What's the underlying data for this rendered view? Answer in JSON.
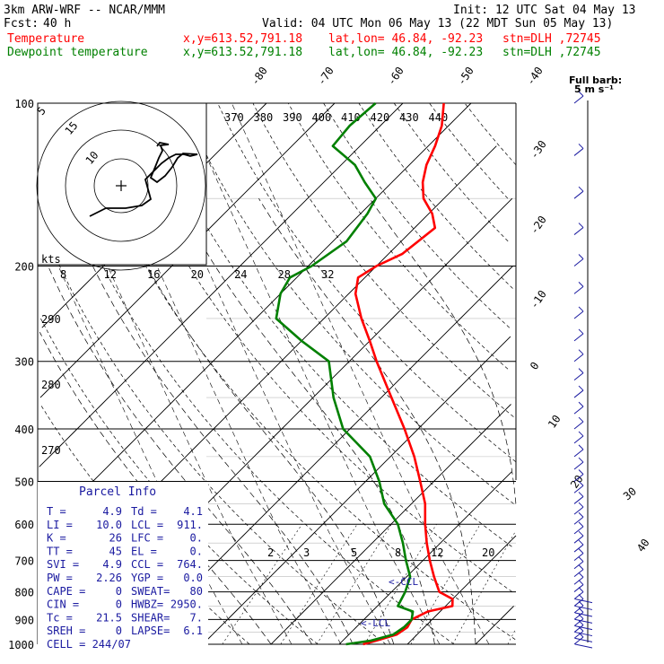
{
  "header": {
    "model": "3km ARW-WRF -- NCAR/MMM",
    "init_label": "Init: 12 UTC Sat 04 May 13",
    "fcst_label": "Fcst:",
    "fcst_value": "40 h",
    "valid_label": "Valid: 04 UTC Mon 06 May 13 (22 MDT Sun 05 May 13)"
  },
  "legend": [
    {
      "name": "Temperature",
      "xy": "x,y=613.52,791.18",
      "latlon": "lat,lon= 46.84, -92.23",
      "stn": "stn=DLH ,72745",
      "color": "#ff0000"
    },
    {
      "name": "Dewpoint temperature",
      "xy": "x,y=613.52,791.18",
      "latlon": "lat,lon= 46.84, -92.23",
      "stn": "stn=DLH ,72745",
      "color": "#008000"
    }
  ],
  "barb_legend": {
    "line1": "Full barb:",
    "line2": "5 m s⁻¹"
  },
  "hodograph": {
    "ring_labels": [
      "15",
      "10",
      "5"
    ],
    "units": "kts"
  },
  "parcel_info": {
    "title": "Parcel Info",
    "rows": [
      [
        "T  =",
        "4.9",
        "Td =",
        "4.1"
      ],
      [
        "LI =",
        "10.0",
        "LCL =",
        "911."
      ],
      [
        "K  =",
        "26",
        "LFC =",
        "0."
      ],
      [
        "TT =",
        "45",
        "EL  =",
        "0."
      ],
      [
        "SVI =",
        "4.9",
        "CCL =",
        "764."
      ],
      [
        "PW =",
        "2.26",
        "YGP =",
        "0.0"
      ],
      [
        "CAPE =",
        "0",
        "SWEAT=",
        "80"
      ],
      [
        "CIN =",
        "0",
        "HWBZ=",
        "2950."
      ],
      [
        "Tc =",
        "21.5",
        "SHEAR=",
        "7."
      ],
      [
        "SREH =",
        "0",
        "LAPSE=",
        "6.1"
      ]
    ],
    "cell": "CELL = 244/07"
  },
  "chart_data": {
    "type": "line",
    "plot": "skew-T log-P diagram",
    "y_axis": {
      "label": "pressure (hPa)",
      "scale": "log",
      "range": [
        1000,
        100
      ],
      "ticks": [
        100,
        200,
        300,
        400,
        500,
        600,
        700,
        800,
        900,
        1000
      ]
    },
    "isotherm_labels": [
      "-80",
      "-70",
      "-60",
      "-50",
      "-40",
      "-30",
      "-20",
      "-10",
      "0",
      "10",
      "20",
      "30",
      "40"
    ],
    "isotherm_values": [
      -80,
      -70,
      -60,
      -50,
      -40,
      -30,
      -20,
      -10,
      0,
      10,
      20,
      30,
      40
    ],
    "theta_labels_top": [
      "370",
      "380",
      "390",
      "400",
      "410",
      "420",
      "430",
      "440"
    ],
    "theta_labels_left": [
      "290",
      "280",
      "270"
    ],
    "thetae_labels": [
      "8",
      "12",
      "16",
      "20",
      "24",
      "28",
      "32"
    ],
    "mixing_ratio_labels": [
      "2",
      "3",
      "5",
      "8",
      "12",
      "20"
    ],
    "annotations": [
      "<-CCL",
      "<-LCL"
    ],
    "series": [
      {
        "name": "Temperature",
        "color": "#ff0000",
        "points": [
          [
            1000,
            3.5
          ],
          [
            985,
            4.9
          ],
          [
            960,
            7.0
          ],
          [
            930,
            7.5
          ],
          [
            900,
            7.0
          ],
          [
            870,
            8.2
          ],
          [
            850,
            11.0
          ],
          [
            825,
            10.0
          ],
          [
            800,
            7.0
          ],
          [
            750,
            4.0
          ],
          [
            700,
            1.0
          ],
          [
            650,
            -2.0
          ],
          [
            600,
            -5.0
          ],
          [
            550,
            -8.0
          ],
          [
            500,
            -12.0
          ],
          [
            450,
            -16.5
          ],
          [
            400,
            -22.0
          ],
          [
            350,
            -28.5
          ],
          [
            300,
            -36.0
          ],
          [
            275,
            -40.0
          ],
          [
            250,
            -44.5
          ],
          [
            225,
            -49.0
          ],
          [
            210,
            -51.0
          ],
          [
            200,
            -50.0
          ],
          [
            190,
            -48.0
          ],
          [
            180,
            -47.5
          ],
          [
            170,
            -47.0
          ],
          [
            160,
            -49.5
          ],
          [
            150,
            -53.0
          ],
          [
            140,
            -55.5
          ],
          [
            130,
            -57.5
          ],
          [
            120,
            -59.0
          ],
          [
            110,
            -61.0
          ],
          [
            100,
            -64.0
          ]
        ]
      },
      {
        "name": "Dewpoint temperature",
        "color": "#008000",
        "points": [
          [
            1000,
            1.0
          ],
          [
            985,
            4.1
          ],
          [
            960,
            6.5
          ],
          [
            930,
            7.0
          ],
          [
            900,
            7.0
          ],
          [
            870,
            6.0
          ],
          [
            850,
            3.0
          ],
          [
            800,
            2.0
          ],
          [
            750,
            0.5
          ],
          [
            700,
            -2.5
          ],
          [
            650,
            -5.5
          ],
          [
            600,
            -9.0
          ],
          [
            550,
            -14.0
          ],
          [
            500,
            -18.0
          ],
          [
            450,
            -23.0
          ],
          [
            400,
            -31.0
          ],
          [
            350,
            -37.0
          ],
          [
            300,
            -43.0
          ],
          [
            275,
            -50.0
          ],
          [
            250,
            -57.0
          ],
          [
            225,
            -60.0
          ],
          [
            210,
            -61.0
          ],
          [
            200,
            -59.5
          ],
          [
            180,
            -58.0
          ],
          [
            160,
            -59.0
          ],
          [
            150,
            -60.0
          ],
          [
            140,
            -64.0
          ],
          [
            130,
            -68.0
          ],
          [
            120,
            -74.0
          ],
          [
            110,
            -74.5
          ],
          [
            100,
            -74.0
          ]
        ]
      }
    ],
    "wind_barbs": {
      "levels_hpa": [
        1000,
        975,
        950,
        925,
        900,
        875,
        850,
        825,
        800,
        775,
        750,
        725,
        700,
        675,
        650,
        625,
        600,
        575,
        550,
        525,
        500,
        475,
        450,
        425,
        400,
        375,
        350,
        325,
        300,
        275,
        250,
        225,
        200,
        175,
        150,
        125,
        100
      ]
    }
  }
}
